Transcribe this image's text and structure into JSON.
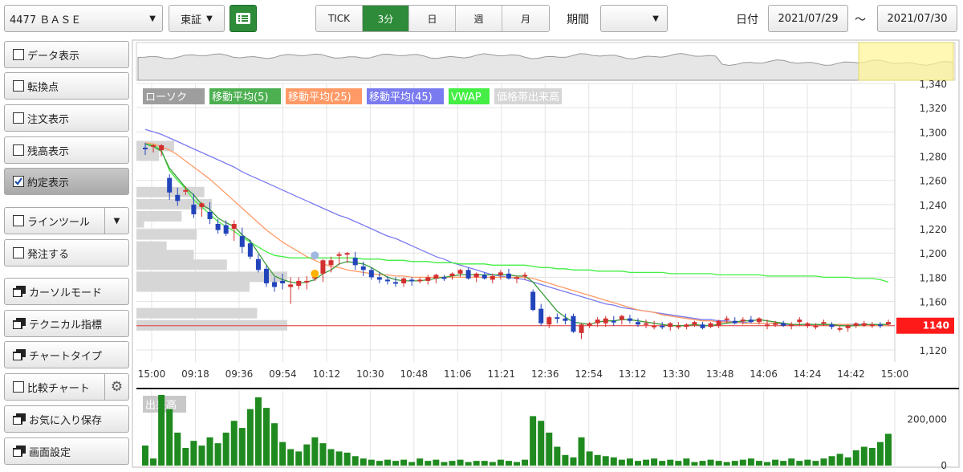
{
  "toolbar": {
    "symbol": "4477 ＢＡＳＥ",
    "exchange": "東証",
    "timeframes": [
      "TICK",
      "3分",
      "日",
      "週",
      "月"
    ],
    "active_timeframe": "3分",
    "period_label": "期間",
    "period_value": "",
    "date_label": "日付",
    "date_from": "2021/07/29",
    "date_sep": "～",
    "date_to": "2021/07/30"
  },
  "sidebar": {
    "items": [
      {
        "label": "データ表示",
        "kind": "checkbox",
        "checked": false
      },
      {
        "label": "転換点",
        "kind": "checkbox",
        "checked": false
      },
      {
        "label": "注文表示",
        "kind": "checkbox",
        "checked": false
      },
      {
        "label": "残高表示",
        "kind": "checkbox",
        "checked": false
      },
      {
        "label": "約定表示",
        "kind": "checkbox",
        "checked": true
      },
      {
        "label": "ラインツール",
        "kind": "checkbox-dropdown",
        "checked": false
      },
      {
        "label": "発注する",
        "kind": "checkbox",
        "checked": false
      },
      {
        "label": "カーソルモード",
        "kind": "window"
      },
      {
        "label": "テクニカル指標",
        "kind": "window"
      },
      {
        "label": "チャートタイプ",
        "kind": "window"
      },
      {
        "label": "比較チャート",
        "kind": "checkbox-gear",
        "checked": false
      },
      {
        "label": "お気に入り保存",
        "kind": "window"
      },
      {
        "label": "画面設定",
        "kind": "window"
      }
    ]
  },
  "chart_data": {
    "type": "candlestick",
    "legend": [
      {
        "name": "ローソク",
        "color": "#9e9e9e"
      },
      {
        "name": "移動平均(5)",
        "color": "#4caf50"
      },
      {
        "name": "移動平均(25)",
        "color": "#ff9a66"
      },
      {
        "name": "移動平均(45)",
        "color": "#7b7bf0"
      },
      {
        "name": "VWAP",
        "color": "#44ee44"
      },
      {
        "name": "価格帯出来高",
        "color": "#d6d6d6"
      }
    ],
    "x_ticks": [
      "15:00",
      "09:18",
      "09:36",
      "09:54",
      "10:12",
      "10:30",
      "10:48",
      "11:06",
      "11:21",
      "12:36",
      "12:54",
      "13:12",
      "13:30",
      "13:48",
      "14:06",
      "14:24",
      "14:42",
      "15:00"
    ],
    "y_ticks": [
      1340,
      1320,
      1300,
      1280,
      1260,
      1240,
      1220,
      1200,
      1180,
      1160,
      1140,
      1120
    ],
    "ylim": [
      1110,
      1340
    ],
    "current_price": "1140",
    "current_price_value": 1140,
    "up_color": "#d32f2f",
    "down_color": "#2244bb",
    "candles": [
      [
        1287,
        1291,
        1281,
        1286
      ],
      [
        1288,
        1290,
        1283,
        1289
      ],
      [
        1285,
        1290,
        1280,
        1289
      ],
      [
        1262,
        1265,
        1244,
        1250
      ],
      [
        1248,
        1254,
        1239,
        1243
      ],
      [
        1251,
        1255,
        1248,
        1252
      ],
      [
        1240,
        1249,
        1229,
        1232
      ],
      [
        1238,
        1242,
        1230,
        1241
      ],
      [
        1234,
        1242,
        1224,
        1228
      ],
      [
        1224,
        1228,
        1216,
        1219
      ],
      [
        1223,
        1227,
        1214,
        1216
      ],
      [
        1220,
        1227,
        1210,
        1224
      ],
      [
        1214,
        1221,
        1200,
        1205
      ],
      [
        1208,
        1211,
        1195,
        1197
      ],
      [
        1195,
        1199,
        1184,
        1186
      ],
      [
        1187,
        1190,
        1172,
        1175
      ],
      [
        1176,
        1180,
        1168,
        1172
      ],
      [
        1177,
        1183,
        1170,
        1175
      ],
      [
        1172,
        1180,
        1158,
        1174
      ],
      [
        1173,
        1180,
        1170,
        1177
      ],
      [
        1176,
        1181,
        1170,
        1177
      ],
      [
        1179,
        1186,
        1177,
        1183
      ],
      [
        1183,
        1195,
        1176,
        1194
      ],
      [
        1190,
        1197,
        1184,
        1194
      ],
      [
        1199,
        1201,
        1190,
        1199
      ],
      [
        1199,
        1201,
        1192,
        1200
      ],
      [
        1196,
        1201,
        1186,
        1190
      ],
      [
        1189,
        1193,
        1181,
        1186
      ],
      [
        1186,
        1188,
        1178,
        1180
      ],
      [
        1180,
        1184,
        1175,
        1178
      ],
      [
        1178,
        1181,
        1174,
        1177
      ],
      [
        1176,
        1180,
        1172,
        1175
      ],
      [
        1175,
        1180,
        1172,
        1179
      ],
      [
        1178,
        1180,
        1173,
        1177
      ],
      [
        1177,
        1180,
        1175,
        1178
      ],
      [
        1177,
        1182,
        1174,
        1180
      ],
      [
        1179,
        1183,
        1175,
        1182
      ],
      [
        1180,
        1182,
        1177,
        1179
      ],
      [
        1181,
        1184,
        1178,
        1183
      ],
      [
        1183,
        1187,
        1180,
        1186
      ],
      [
        1186,
        1188,
        1178,
        1179
      ],
      [
        1180,
        1184,
        1176,
        1183
      ],
      [
        1182,
        1184,
        1178,
        1179
      ],
      [
        1178,
        1183,
        1175,
        1181
      ],
      [
        1182,
        1186,
        1178,
        1184
      ],
      [
        1183,
        1187,
        1178,
        1179
      ],
      [
        1179,
        1181,
        1175,
        1180
      ],
      [
        1181,
        1184,
        1178,
        1182
      ],
      [
        1168,
        1170,
        1152,
        1153
      ],
      [
        1154,
        1158,
        1140,
        1142
      ],
      [
        1141,
        1148,
        1138,
        1147
      ],
      [
        1147,
        1150,
        1142,
        1146
      ],
      [
        1146,
        1150,
        1141,
        1144
      ],
      [
        1148,
        1150,
        1134,
        1135
      ],
      [
        1134,
        1142,
        1129,
        1141
      ],
      [
        1140,
        1143,
        1138,
        1142
      ],
      [
        1142,
        1147,
        1139,
        1145
      ],
      [
        1142,
        1148,
        1139,
        1146
      ],
      [
        1144,
        1148,
        1140,
        1143
      ],
      [
        1145,
        1149,
        1141,
        1148
      ],
      [
        1146,
        1149,
        1142,
        1144
      ],
      [
        1143,
        1146,
        1139,
        1141
      ],
      [
        1141,
        1145,
        1138,
        1142
      ],
      [
        1140,
        1144,
        1137,
        1140
      ],
      [
        1140,
        1143,
        1137,
        1139
      ],
      [
        1139,
        1143,
        1136,
        1142
      ],
      [
        1140,
        1143,
        1137,
        1140
      ],
      [
        1139,
        1142,
        1137,
        1141
      ],
      [
        1141,
        1144,
        1139,
        1143
      ],
      [
        1141,
        1143,
        1137,
        1138
      ],
      [
        1139,
        1143,
        1138,
        1142
      ],
      [
        1140,
        1145,
        1138,
        1144
      ],
      [
        1145,
        1148,
        1142,
        1146
      ],
      [
        1144,
        1147,
        1141,
        1142
      ],
      [
        1144,
        1147,
        1141,
        1145
      ],
      [
        1145,
        1148,
        1142,
        1143
      ],
      [
        1143,
        1147,
        1141,
        1146
      ],
      [
        1140,
        1145,
        1137,
        1141
      ],
      [
        1141,
        1144,
        1139,
        1142
      ],
      [
        1142,
        1144,
        1139,
        1140
      ],
      [
        1140,
        1143,
        1137,
        1141
      ],
      [
        1143,
        1147,
        1140,
        1145
      ],
      [
        1140,
        1143,
        1138,
        1142
      ],
      [
        1139,
        1142,
        1137,
        1140
      ],
      [
        1142,
        1145,
        1140,
        1143
      ],
      [
        1141,
        1143,
        1137,
        1139
      ],
      [
        1137,
        1140,
        1135,
        1138
      ],
      [
        1138,
        1141,
        1135,
        1140
      ],
      [
        1140,
        1143,
        1138,
        1142
      ],
      [
        1140,
        1144,
        1139,
        1142
      ],
      [
        1140,
        1143,
        1138,
        1141
      ],
      [
        1141,
        1143,
        1138,
        1140
      ],
      [
        1141,
        1145,
        1140,
        1143
      ]
    ],
    "ma5": [
      1290,
      1288,
      1284,
      1270,
      1262,
      1254,
      1248,
      1240,
      1236,
      1229,
      1225,
      1222,
      1215,
      1210,
      1200,
      1190,
      1181,
      1178,
      1176,
      1175,
      1176,
      1178,
      1183,
      1186,
      1191,
      1193,
      1192,
      1191,
      1188,
      1184,
      1180,
      1178,
      1177,
      1177,
      1177,
      1178,
      1179,
      1180,
      1181,
      1182,
      1182,
      1182,
      1182,
      1182,
      1182,
      1182,
      1181,
      1181,
      1176,
      1168,
      1160,
      1152,
      1147,
      1143,
      1142,
      1141,
      1143,
      1144,
      1144,
      1145,
      1145,
      1144,
      1143,
      1142,
      1141,
      1140,
      1140,
      1140,
      1141,
      1140,
      1140,
      1141,
      1142,
      1143,
      1144,
      1144,
      1145,
      1144,
      1143,
      1142,
      1141,
      1141,
      1141,
      1141,
      1141,
      1141,
      1140,
      1140,
      1140,
      1141,
      1141,
      1141,
      1141
    ],
    "ma25": [
      1291,
      1290,
      1288,
      1285,
      1281,
      1276,
      1271,
      1266,
      1261,
      1255,
      1249,
      1243,
      1237,
      1231,
      1225,
      1219,
      1214,
      1209,
      1205,
      1201,
      1197,
      1194,
      1191,
      1189,
      1188,
      1186,
      1185,
      1184,
      1183,
      1182,
      1182,
      1181,
      1181,
      1180,
      1180,
      1180,
      1180,
      1180,
      1180,
      1180,
      1180,
      1180,
      1180,
      1180,
      1180,
      1180,
      1180,
      1180,
      1179,
      1177,
      1175,
      1173,
      1171,
      1169,
      1167,
      1165,
      1163,
      1161,
      1159,
      1157,
      1155,
      1153,
      1152,
      1151,
      1149,
      1148,
      1147,
      1146,
      1145,
      1144,
      1144,
      1143,
      1143,
      1143,
      1142,
      1142,
      1142,
      1142,
      1142,
      1142,
      1141,
      1141,
      1141,
      1141,
      1141,
      1141,
      1141,
      1141,
      1140,
      1140,
      1140,
      1140,
      1140
    ],
    "ma45": [
      1302,
      1300,
      1298,
      1295,
      1292,
      1289,
      1286,
      1283,
      1280,
      1277,
      1274,
      1271,
      1267,
      1264,
      1261,
      1258,
      1255,
      1252,
      1249,
      1246,
      1243,
      1240,
      1237,
      1234,
      1231,
      1229,
      1226,
      1223,
      1220,
      1217,
      1214,
      1212,
      1209,
      1206,
      1203,
      1200,
      1197,
      1195,
      1192,
      1190,
      1188,
      1186,
      1184,
      1182,
      1181,
      1180,
      1179,
      1178,
      1176,
      1174,
      1172,
      1170,
      1168,
      1166,
      1164,
      1162,
      1160,
      1158,
      1157,
      1155,
      1154,
      1153,
      1152,
      1151,
      1150,
      1149,
      1148,
      1147,
      1146,
      1145,
      1145,
      1144,
      1144,
      1143,
      1143,
      1142,
      1142,
      1142,
      1142,
      1141,
      1141,
      1141,
      1141,
      1141,
      1141,
      1141,
      1141,
      1141,
      1141,
      1141,
      1141,
      1141,
      1141
    ],
    "vwap": [
      1290,
      1289,
      1285,
      1268,
      1260,
      1253,
      1244,
      1238,
      1232,
      1226,
      1222,
      1218,
      1213,
      1209,
      1205,
      1201,
      1198,
      1197,
      1196,
      1196,
      1196,
      1196,
      1196,
      1196,
      1196,
      1196,
      1196,
      1195,
      1195,
      1195,
      1194,
      1194,
      1194,
      1193,
      1193,
      1193,
      1192,
      1192,
      1192,
      1191,
      1191,
      1191,
      1191,
      1190,
      1190,
      1190,
      1190,
      1190,
      1189,
      1188,
      1188,
      1187,
      1187,
      1186,
      1186,
      1186,
      1185,
      1185,
      1185,
      1185,
      1184,
      1184,
      1184,
      1184,
      1184,
      1183,
      1183,
      1183,
      1183,
      1183,
      1183,
      1182,
      1182,
      1182,
      1182,
      1182,
      1182,
      1181,
      1181,
      1181,
      1181,
      1181,
      1181,
      1181,
      1180,
      1180,
      1180,
      1180,
      1179,
      1179,
      1179,
      1178,
      1176
    ],
    "volume_title": "出来高",
    "volume_ticks": [
      200000,
      0
    ],
    "volume_max": 300000,
    "volumes": [
      85000,
      30000,
      300000,
      240000,
      140000,
      75000,
      105000,
      85000,
      120000,
      95000,
      140000,
      190000,
      160000,
      240000,
      290000,
      245000,
      180000,
      100000,
      70000,
      60000,
      90000,
      120000,
      95000,
      70000,
      60000,
      55000,
      40000,
      30000,
      25000,
      20000,
      25000,
      20000,
      25000,
      15000,
      30000,
      20000,
      25000,
      15000,
      20000,
      25000,
      15000,
      20000,
      20000,
      15000,
      25000,
      20000,
      15000,
      25000,
      210000,
      190000,
      140000,
      80000,
      45000,
      35000,
      120000,
      60000,
      45000,
      40000,
      35000,
      25000,
      30000,
      20000,
      25000,
      30000,
      20000,
      25000,
      20000,
      30000,
      15000,
      20000,
      25000,
      20000,
      15000,
      20000,
      25000,
      30000,
      20000,
      15000,
      25000,
      20000,
      30000,
      20000,
      25000,
      20000,
      30000,
      40000,
      50000,
      35000,
      65000,
      80000,
      75000,
      100000,
      135000
    ],
    "price_volume_profile": [
      {
        "price": 1288,
        "value": 0.25
      },
      {
        "price": 1280,
        "value": 0.15
      },
      {
        "price": 1250,
        "value": 0.45
      },
      {
        "price": 1240,
        "value": 0.5
      },
      {
        "price": 1230,
        "value": 0.3
      },
      {
        "price": 1225,
        "value": 0.05
      },
      {
        "price": 1215,
        "value": 0.4
      },
      {
        "price": 1205,
        "value": 0.2
      },
      {
        "price": 1198,
        "value": 0.38
      },
      {
        "price": 1190,
        "value": 0.6
      },
      {
        "price": 1180,
        "value": 1.0
      },
      {
        "price": 1172,
        "value": 0.75
      },
      {
        "price": 1150,
        "value": 0.8
      },
      {
        "price": 1140,
        "value": 1.0
      }
    ],
    "range_selector": "yellow highlight at right end"
  }
}
